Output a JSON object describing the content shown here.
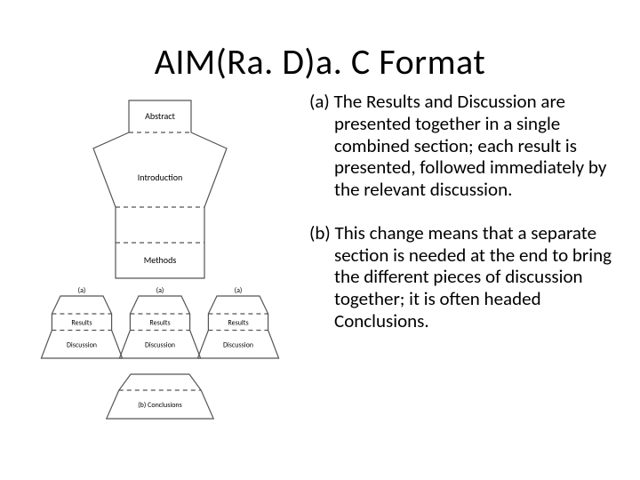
{
  "title": "AIM(Ra. D)a. C Format",
  "paragraphs": {
    "a": "(a) The Results and Discussion are presented together in a single combined section; each result is presented, followed immediately by the relevant discussion.",
    "b": "(b) This change means that a separate section is needed at the end to bring the different pieces of discussion together; it is often headed Conclusions."
  },
  "diagram": {
    "type": "flow-shape-infographic",
    "stroke": "#555555",
    "stroke_width": 1.2,
    "dash": "5,4",
    "label_font_size": 10,
    "small_label_font_size": 8,
    "main_shape": {
      "labels": [
        "Abstract",
        "Introduction",
        "Methods"
      ],
      "top_neck_w": 70,
      "top_shoulder_w": 150,
      "bottom_w": 100,
      "total_h": 200,
      "neck_h": 36,
      "shoulder_drop": 18,
      "taper_to_h": 120
    },
    "triplets": {
      "marker": "(a)",
      "top_label": "Results",
      "bottom_label": "Discussion",
      "count": 3,
      "tri_w": 80,
      "tri_h": 70,
      "gap": 8,
      "roof_h": 20,
      "base_flare": 12
    },
    "conclusion": {
      "label": "(b) Conclusions",
      "w": 110,
      "h": 50,
      "roof_h": 18,
      "base_flare": 14
    }
  },
  "colors": {
    "background": "#ffffff",
    "text": "#000000",
    "stroke": "#555555"
  }
}
